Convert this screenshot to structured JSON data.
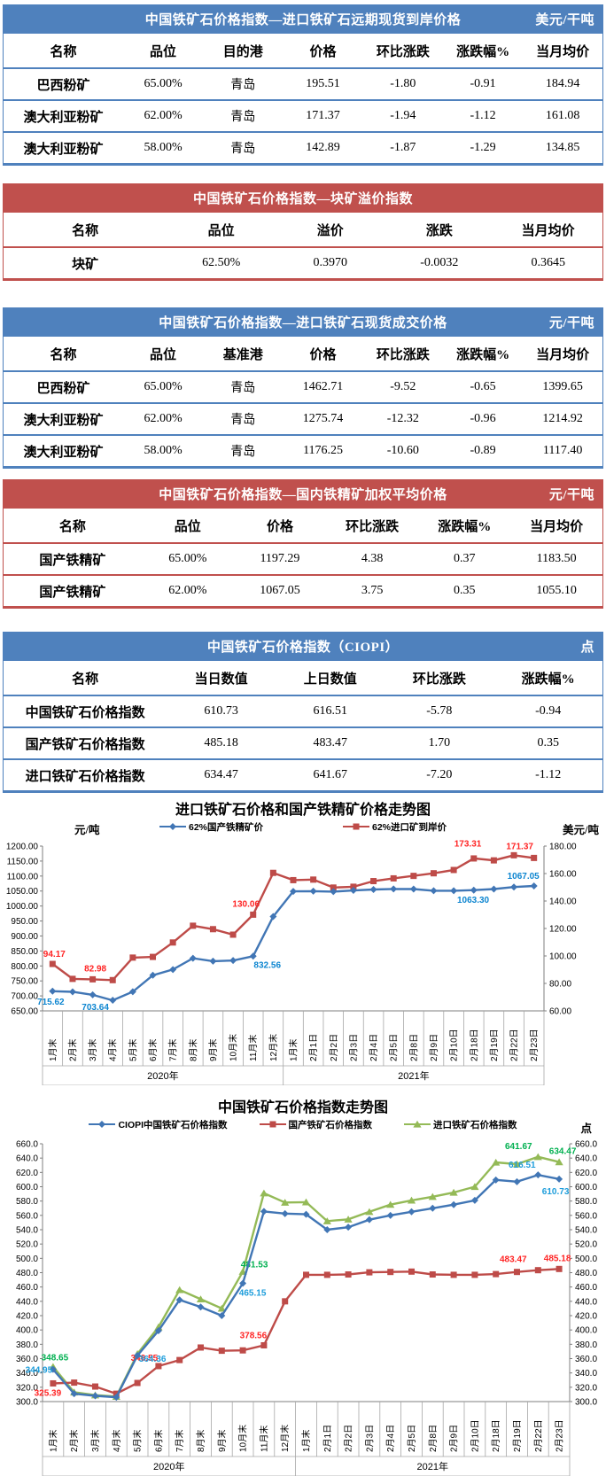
{
  "colors": {
    "table_blue": "#4f81bd",
    "table_red": "#c0504d",
    "line_blue": "#4176b5",
    "line_red": "#be4b48",
    "line_green": "#94ba57"
  },
  "tables": [
    {
      "title": "中国铁矿石价格指数—进口铁矿石远期现货到岸价格",
      "unit": "美元/干吨",
      "theme": "blue",
      "headers": [
        "名称",
        "品位",
        "目的港",
        "价格",
        "环比涨跌",
        "涨跌幅%",
        "当月均价"
      ],
      "rows": [
        [
          "巴西粉矿",
          "65.00%",
          "青岛",
          "195.51",
          "-1.80",
          "-0.91",
          "184.94"
        ],
        [
          "澳大利亚粉矿",
          "62.00%",
          "青岛",
          "171.37",
          "-1.94",
          "-1.12",
          "161.08"
        ],
        [
          "澳大利亚粉矿",
          "58.00%",
          "青岛",
          "142.89",
          "-1.87",
          "-1.29",
          "134.85"
        ]
      ]
    },
    {
      "title": "中国铁矿石价格指数—块矿溢价指数",
      "unit": "",
      "theme": "red",
      "headers": [
        "名称",
        "品位",
        "溢价",
        "涨跌",
        "当月均价"
      ],
      "rows": [
        [
          "块矿",
          "62.50%",
          "0.3970",
          "-0.0032",
          "0.3645"
        ]
      ]
    },
    {
      "title": "中国铁矿石价格指数—进口铁矿石现货成交价格",
      "unit": "元/干吨",
      "theme": "blue",
      "headers": [
        "名称",
        "品位",
        "基准港",
        "价格",
        "环比涨跌",
        "涨跌幅%",
        "当月均价"
      ],
      "rows": [
        [
          "巴西粉矿",
          "65.00%",
          "青岛",
          "1462.71",
          "-9.52",
          "-0.65",
          "1399.65"
        ],
        [
          "澳大利亚粉矿",
          "62.00%",
          "青岛",
          "1275.74",
          "-12.32",
          "-0.96",
          "1214.92"
        ],
        [
          "澳大利亚粉矿",
          "58.00%",
          "青岛",
          "1176.25",
          "-10.60",
          "-0.89",
          "1117.40"
        ]
      ]
    },
    {
      "title": "中国铁矿石价格指数—国内铁精矿加权平均价格",
      "unit": "元/干吨",
      "theme": "red",
      "headers": [
        "名称",
        "品位",
        "价格",
        "环比涨跌",
        "涨跌幅%",
        "当月均价"
      ],
      "rows": [
        [
          "国产铁精矿",
          "65.00%",
          "1197.29",
          "4.38",
          "0.37",
          "1183.50"
        ],
        [
          "国产铁精矿",
          "62.00%",
          "1067.05",
          "3.75",
          "0.35",
          "1055.10"
        ]
      ]
    },
    {
      "title": "中国铁矿石价格指数（CIOPI）",
      "unit": "点",
      "theme": "blue",
      "headers": [
        "名称",
        "当日数值",
        "上日数值",
        "环比涨跌",
        "涨跌幅%"
      ],
      "rows": [
        [
          "中国铁矿石价格指数",
          "610.73",
          "616.51",
          "-5.78",
          "-0.94"
        ],
        [
          "国产铁矿石价格指数",
          "485.18",
          "483.47",
          "1.70",
          "0.35"
        ],
        [
          "进口铁矿石价格指数",
          "634.47",
          "641.67",
          "-7.20",
          "-1.12"
        ]
      ]
    }
  ],
  "chart_data": [
    {
      "type": "line",
      "title": "进口铁矿石价格和国产铁精矿价格走势图",
      "left_axis_label": "元/吨",
      "right_axis_label": "美元/吨",
      "categories": [
        "1月末",
        "2月末",
        "3月末",
        "4月末",
        "5月末",
        "6月末",
        "7月末",
        "8月末",
        "9月末",
        "10月末",
        "11月末",
        "12月末",
        "1月末",
        "2月1日",
        "2月2日",
        "2月3日",
        "2月4日",
        "2月5日",
        "2月8日",
        "2月9日",
        "2月10日",
        "2月18日",
        "2月19日",
        "2月22日",
        "2月23日"
      ],
      "year_groups": [
        {
          "label": "2020年",
          "count": 12
        },
        {
          "label": "2021年",
          "count": 13
        }
      ],
      "left_ylim": [
        650,
        1200
      ],
      "left_step": 50,
      "left_decimals": 2,
      "right_ylim": [
        60,
        180
      ],
      "right_step": 20,
      "right_decimals": 2,
      "grid": false,
      "legend_position": "top",
      "series": [
        {
          "name": "62%国产铁精矿价",
          "axis": "left",
          "marker": "diamond",
          "color": "#4176b5",
          "label_color": "#0c85d0",
          "values": [
            715.62,
            713.5,
            703.64,
            685.3,
            714,
            769,
            788,
            825.5,
            816,
            818,
            832.56,
            965,
            1049,
            1049.5,
            1048,
            1052,
            1055,
            1057,
            1056.5,
            1051,
            1051,
            1053,
            1056.5,
            1063.3,
            1067.05
          ],
          "labels": [
            {
              "i": 0,
              "text": "715.62",
              "dx": -2,
              "dy": 15
            },
            {
              "i": 2,
              "text": "703.64",
              "dx": 3,
              "dy": 17
            },
            {
              "i": 10,
              "text": "832.56",
              "dx": 16,
              "dy": 13
            },
            {
              "i": 23,
              "text": "1063.30",
              "dx": -46,
              "dy": 18
            },
            {
              "i": 24,
              "text": "1067.05",
              "dx": -12,
              "dy": -8
            }
          ]
        },
        {
          "name": "62%进口矿到岸价",
          "axis": "right",
          "marker": "square",
          "color": "#be4b48",
          "label_color": "#ff2424",
          "values": [
            94.17,
            83.3,
            82.98,
            82.4,
            98.8,
            99.3,
            109.8,
            122,
            119.5,
            115.5,
            130.06,
            160.5,
            155.2,
            155.6,
            149.8,
            150.4,
            154.5,
            156.5,
            158.3,
            160.2,
            162.6,
            171,
            169.6,
            173.31,
            171.37
          ],
          "labels": [
            {
              "i": 0,
              "text": "94.17",
              "dx": 2,
              "dy": -8
            },
            {
              "i": 2,
              "text": "82.98",
              "dx": 3,
              "dy": -9
            },
            {
              "i": 10,
              "text": "130.06",
              "dx": -8,
              "dy": -9
            },
            {
              "i": 23,
              "text": "173.31",
              "dx": -52,
              "dy": -10
            },
            {
              "i": 24,
              "text": "171.37",
              "dx": -16,
              "dy": -10
            }
          ]
        }
      ]
    },
    {
      "type": "line",
      "title": "中国铁矿石价格指数走势图",
      "left_axis_label": "",
      "right_axis_label": "点",
      "categories": [
        "1月末",
        "2月末",
        "3月末",
        "4月末",
        "5月末",
        "6月末",
        "7月末",
        "8月末",
        "9月末",
        "10月末",
        "11月末",
        "12月末",
        "1月末",
        "2月1日",
        "2月2日",
        "2月3日",
        "2月4日",
        "2月5日",
        "2月8日",
        "2月9日",
        "2月10日",
        "2月18日",
        "2月19日",
        "2月22日",
        "2月23日"
      ],
      "year_groups": [
        {
          "label": "2020年",
          "count": 12
        },
        {
          "label": "2021年",
          "count": 13
        }
      ],
      "left_ylim": [
        300,
        660
      ],
      "left_step": 20,
      "left_decimals": 1,
      "right_ylim": [
        300,
        660
      ],
      "right_step": 20,
      "right_decimals": 1,
      "grid": false,
      "legend_position": "top",
      "series": [
        {
          "name": "CIOPI中国铁矿石价格指数",
          "axis": "left",
          "marker": "diamond",
          "color": "#4176b5",
          "label_color": "#1d9ddb",
          "values": [
            344.95,
            311,
            308,
            306,
            364.36,
            399,
            442,
            432,
            420,
            465.15,
            565.5,
            562.5,
            561.5,
            540,
            543.5,
            554,
            560,
            565,
            570,
            575,
            581,
            609.5,
            607,
            616.51,
            610.73
          ],
          "labels": [
            {
              "i": 0,
              "text": "344.95",
              "dx": -16,
              "dy": 4
            },
            {
              "i": 4,
              "text": "364.36",
              "dx": 17,
              "dy": 7
            },
            {
              "i": 9,
              "text": "465.15",
              "dx": 11,
              "dy": 14
            },
            {
              "i": 23,
              "text": "616.51",
              "dx": -18,
              "dy": -8
            },
            {
              "i": 24,
              "text": "610.73",
              "dx": -4,
              "dy": 17
            }
          ]
        },
        {
          "name": "国产铁矿石价格指数",
          "axis": "left",
          "marker": "square",
          "color": "#be4b48",
          "label_color": "#ff2424",
          "values": [
            325.39,
            326.5,
            321,
            311,
            326,
            349.55,
            358,
            375.5,
            371,
            371.5,
            378.56,
            440,
            477,
            477,
            477.5,
            480.5,
            481,
            481.5,
            477.5,
            477,
            477,
            478,
            481,
            483.47,
            485.18
          ],
          "labels": [
            {
              "i": 0,
              "text": "325.39",
              "dx": -6,
              "dy": 14
            },
            {
              "i": 5,
              "text": "349.55",
              "dx": -16,
              "dy": -6
            },
            {
              "i": 10,
              "text": "378.56",
              "dx": -12,
              "dy": -8
            },
            {
              "i": 23,
              "text": "483.47",
              "dx": -28,
              "dy": -9
            },
            {
              "i": 24,
              "text": "485.18",
              "dx": -2,
              "dy": -9
            }
          ]
        },
        {
          "name": "进口铁矿石价格指数",
          "axis": "left",
          "marker": "triangle",
          "color": "#94ba57",
          "label_color": "#00b050",
          "values": [
            348.65,
            313,
            309,
            307,
            366.5,
            404,
            456,
            443,
            430,
            481.53,
            591,
            578,
            578.5,
            552,
            554.5,
            565,
            575,
            581,
            586,
            592,
            600,
            634,
            631.5,
            641.67,
            634.47
          ],
          "labels": [
            {
              "i": 0,
              "text": "348.65",
              "dx": 2,
              "dy": -7
            },
            {
              "i": 9,
              "text": "481.53",
              "dx": 13,
              "dy": -5
            },
            {
              "i": 23,
              "text": "641.67",
              "dx": -22,
              "dy": -9
            },
            {
              "i": 24,
              "text": "634.47",
              "dx": 4,
              "dy": -9
            }
          ]
        }
      ]
    }
  ]
}
